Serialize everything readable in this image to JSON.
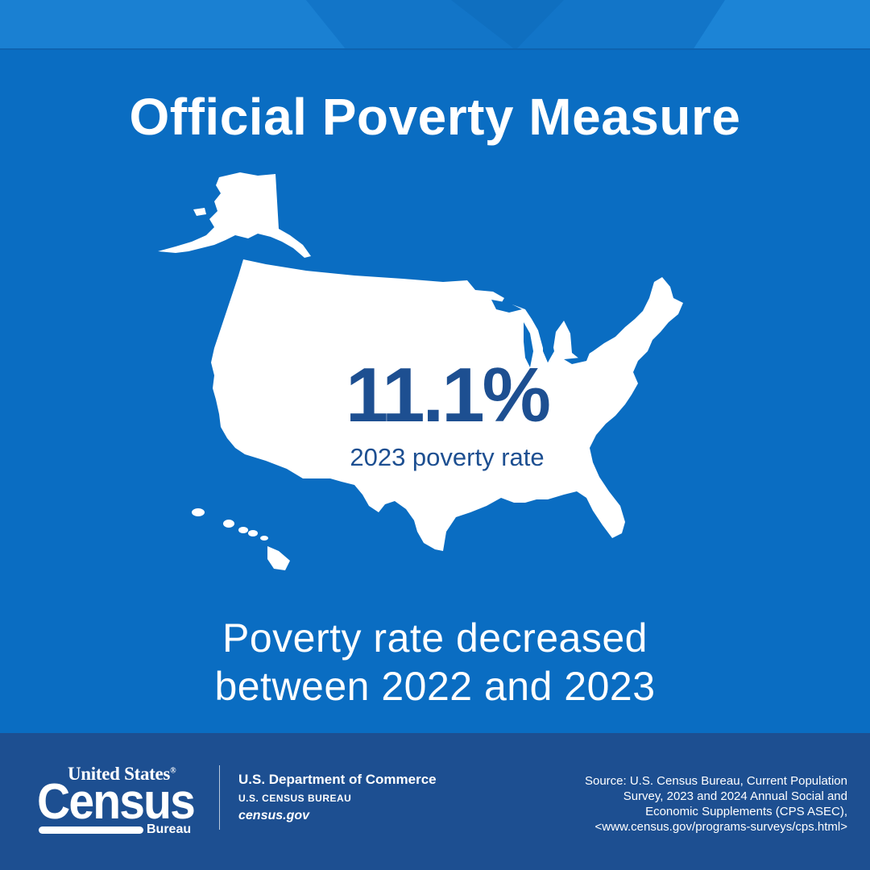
{
  "title": "Official Poverty Measure",
  "stat": {
    "value": "11.1%",
    "caption": "2023 poverty rate"
  },
  "headline": {
    "line1": "Poverty rate decreased",
    "line2": "between 2022 and 2023"
  },
  "footer": {
    "logo_top": "United States",
    "logo_registered": "®",
    "logo_main": "Census",
    "logo_sub": "Bureau",
    "department": "U.S. Department of Commerce",
    "bureau": "U.S. CENSUS BUREAU",
    "website": "census.gov",
    "source_lines": [
      "Source: U.S. Census Bureau, Current Population",
      "Survey, 2023 and 2024 Annual Social and",
      "Economic Supplements (CPS ASEC),",
      "<www.census.gov/programs-surveys/cps.html>"
    ]
  },
  "colors": {
    "background": "#0a6dc2",
    "footer": "#1d4f91",
    "stat_text": "#1d4f91",
    "map_fill": "#ffffff"
  },
  "icons": [
    "us-map-icon",
    "alaska-icon",
    "hawaii-icon"
  ]
}
